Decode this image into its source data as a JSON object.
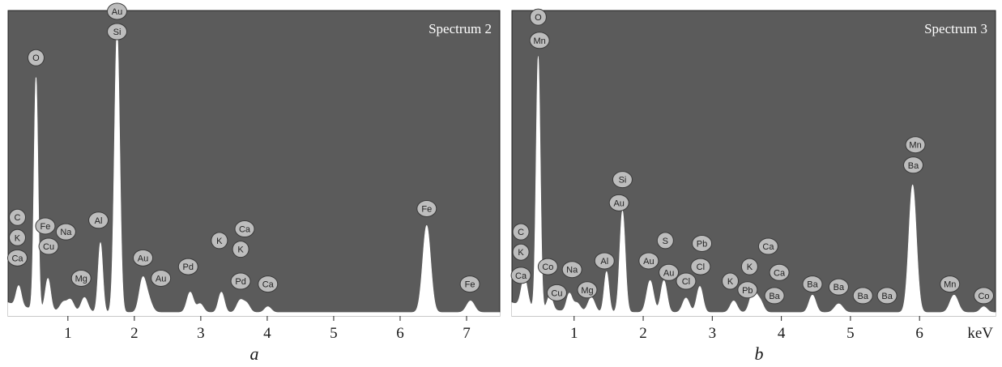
{
  "chart_data": [
    {
      "type": "area",
      "panel_label": "a",
      "title": "Spectrum 2",
      "xlabel": "",
      "ylabel": "",
      "xlim": [
        0.1,
        7.5
      ],
      "x_ticks": [
        1,
        2,
        3,
        4,
        5,
        6,
        7
      ],
      "grid": false,
      "peaks": [
        {
          "x": 0.26,
          "height": 0.07,
          "width": 0.04
        },
        {
          "x": 0.52,
          "height": 0.8,
          "width": 0.03
        },
        {
          "x": 0.7,
          "height": 0.11,
          "width": 0.04
        },
        {
          "x": 0.93,
          "height": 0.03,
          "width": 0.05
        },
        {
          "x": 1.04,
          "height": 0.04,
          "width": 0.05
        },
        {
          "x": 1.25,
          "height": 0.05,
          "width": 0.05
        },
        {
          "x": 1.49,
          "height": 0.24,
          "width": 0.035
        },
        {
          "x": 1.74,
          "height": 0.97,
          "width": 0.04
        },
        {
          "x": 2.12,
          "height": 0.1,
          "width": 0.05
        },
        {
          "x": 2.2,
          "height": 0.05,
          "width": 0.06
        },
        {
          "x": 2.84,
          "height": 0.07,
          "width": 0.05
        },
        {
          "x": 2.99,
          "height": 0.03,
          "width": 0.05
        },
        {
          "x": 3.31,
          "height": 0.07,
          "width": 0.045
        },
        {
          "x": 3.59,
          "height": 0.04,
          "width": 0.05
        },
        {
          "x": 3.69,
          "height": 0.03,
          "width": 0.05
        },
        {
          "x": 4.01,
          "height": 0.02,
          "width": 0.05
        },
        {
          "x": 6.4,
          "height": 0.3,
          "width": 0.06
        },
        {
          "x": 7.06,
          "height": 0.04,
          "width": 0.06
        }
      ],
      "annotations": [
        {
          "label": "Au",
          "x": 1.74,
          "y": 1.05
        },
        {
          "label": "Si",
          "x": 1.74,
          "y": 0.98
        },
        {
          "label": "O",
          "x": 0.52,
          "y": 0.89
        },
        {
          "label": "C",
          "x": 0.24,
          "y": 0.34
        },
        {
          "label": "K",
          "x": 0.24,
          "y": 0.27
        },
        {
          "label": "Ca",
          "x": 0.24,
          "y": 0.2
        },
        {
          "label": "Fe",
          "x": 0.66,
          "y": 0.31
        },
        {
          "label": "Cu",
          "x": 0.71,
          "y": 0.24
        },
        {
          "label": "Na",
          "x": 0.97,
          "y": 0.29
        },
        {
          "label": "Mg",
          "x": 1.2,
          "y": 0.13
        },
        {
          "label": "Al",
          "x": 1.46,
          "y": 0.33
        },
        {
          "label": "Au",
          "x": 2.13,
          "y": 0.2
        },
        {
          "label": "Au",
          "x": 2.4,
          "y": 0.13
        },
        {
          "label": "Pd",
          "x": 2.81,
          "y": 0.17
        },
        {
          "label": "K",
          "x": 3.28,
          "y": 0.26
        },
        {
          "label": "Ca",
          "x": 3.66,
          "y": 0.3
        },
        {
          "label": "K",
          "x": 3.6,
          "y": 0.23
        },
        {
          "label": "Pd",
          "x": 3.6,
          "y": 0.12
        },
        {
          "label": "Ca",
          "x": 4.01,
          "y": 0.11
        },
        {
          "label": "Fe",
          "x": 6.4,
          "y": 0.37
        },
        {
          "label": "Fe",
          "x": 7.05,
          "y": 0.11
        }
      ]
    },
    {
      "type": "area",
      "panel_label": "b",
      "title": "Spectrum 3",
      "xlabel": "keV",
      "ylabel": "",
      "xlim": [
        0.1,
        7.1
      ],
      "x_ticks": [
        1,
        2,
        3,
        4,
        5,
        6
      ],
      "grid": false,
      "peaks": [
        {
          "x": 0.28,
          "height": 0.1,
          "width": 0.045
        },
        {
          "x": 0.48,
          "height": 0.87,
          "width": 0.03
        },
        {
          "x": 0.65,
          "height": 0.05,
          "width": 0.04
        },
        {
          "x": 0.93,
          "height": 0.06,
          "width": 0.04
        },
        {
          "x": 1.04,
          "height": 0.03,
          "width": 0.05
        },
        {
          "x": 1.25,
          "height": 0.05,
          "width": 0.05
        },
        {
          "x": 1.47,
          "height": 0.14,
          "width": 0.035
        },
        {
          "x": 1.7,
          "height": 0.35,
          "width": 0.04
        },
        {
          "x": 2.1,
          "height": 0.11,
          "width": 0.05
        },
        {
          "x": 2.3,
          "height": 0.11,
          "width": 0.045
        },
        {
          "x": 2.62,
          "height": 0.05,
          "width": 0.05
        },
        {
          "x": 2.82,
          "height": 0.09,
          "width": 0.045
        },
        {
          "x": 3.31,
          "height": 0.04,
          "width": 0.05
        },
        {
          "x": 3.59,
          "height": 0.07,
          "width": 0.05
        },
        {
          "x": 3.69,
          "height": 0.04,
          "width": 0.05
        },
        {
          "x": 4.45,
          "height": 0.06,
          "width": 0.05
        },
        {
          "x": 4.83,
          "height": 0.03,
          "width": 0.06
        },
        {
          "x": 5.9,
          "height": 0.44,
          "width": 0.055
        },
        {
          "x": 6.5,
          "height": 0.06,
          "width": 0.06
        },
        {
          "x": 6.93,
          "height": 0.02,
          "width": 0.05
        }
      ],
      "annotations": [
        {
          "label": "O",
          "x": 0.48,
          "y": 1.03
        },
        {
          "label": "Mn",
          "x": 0.5,
          "y": 0.95
        },
        {
          "label": "C",
          "x": 0.23,
          "y": 0.29
        },
        {
          "label": "K",
          "x": 0.23,
          "y": 0.22
        },
        {
          "label": "Ca",
          "x": 0.23,
          "y": 0.14
        },
        {
          "label": "Co",
          "x": 0.62,
          "y": 0.17
        },
        {
          "label": "Cu",
          "x": 0.75,
          "y": 0.08
        },
        {
          "label": "Na",
          "x": 0.97,
          "y": 0.16
        },
        {
          "label": "Mg",
          "x": 1.19,
          "y": 0.09
        },
        {
          "label": "Al",
          "x": 1.44,
          "y": 0.19
        },
        {
          "label": "Si",
          "x": 1.7,
          "y": 0.47
        },
        {
          "label": "Au",
          "x": 1.65,
          "y": 0.39
        },
        {
          "label": "S",
          "x": 2.32,
          "y": 0.26
        },
        {
          "label": "Au",
          "x": 2.08,
          "y": 0.19
        },
        {
          "label": "Au",
          "x": 2.37,
          "y": 0.15
        },
        {
          "label": "Cl",
          "x": 2.62,
          "y": 0.12
        },
        {
          "label": "Pb",
          "x": 2.85,
          "y": 0.25
        },
        {
          "label": "Cl",
          "x": 2.83,
          "y": 0.17
        },
        {
          "label": "K",
          "x": 3.26,
          "y": 0.12
        },
        {
          "label": "K",
          "x": 3.54,
          "y": 0.17
        },
        {
          "label": "Pb",
          "x": 3.51,
          "y": 0.09
        },
        {
          "label": "Ca",
          "x": 3.81,
          "y": 0.24
        },
        {
          "label": "Ca",
          "x": 3.97,
          "y": 0.15
        },
        {
          "label": "Ba",
          "x": 3.9,
          "y": 0.07
        },
        {
          "label": "Ba",
          "x": 4.45,
          "y": 0.11
        },
        {
          "label": "Ba",
          "x": 4.83,
          "y": 0.1
        },
        {
          "label": "Ba",
          "x": 5.18,
          "y": 0.07
        },
        {
          "label": "Ba",
          "x": 5.53,
          "y": 0.07
        },
        {
          "label": "Mn",
          "x": 5.94,
          "y": 0.59
        },
        {
          "label": "Ba",
          "x": 5.91,
          "y": 0.52
        },
        {
          "label": "Mn",
          "x": 6.44,
          "y": 0.11
        },
        {
          "label": "Co",
          "x": 6.93,
          "y": 0.07
        }
      ]
    }
  ]
}
